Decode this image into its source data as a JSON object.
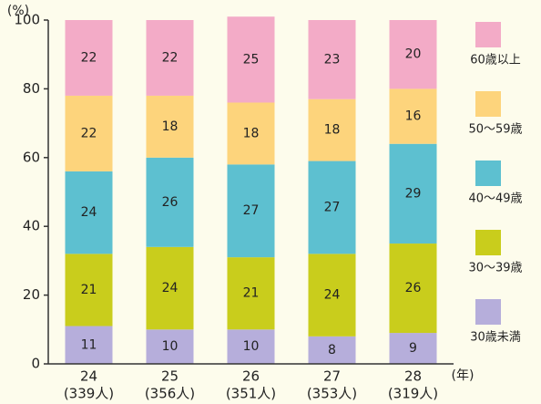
{
  "chart_data": {
    "type": "stacked_bar",
    "y_unit": "(%)",
    "x_unit": "(年)",
    "categories": [
      "24",
      "25",
      "26",
      "27",
      "28"
    ],
    "category_counts": [
      "(339人)",
      "(356人)",
      "(351人)",
      "(353人)",
      "(319人)"
    ],
    "series": [
      {
        "name": "30歳未満",
        "color": "#b6aedb",
        "values": [
          11,
          10,
          10,
          8,
          9
        ]
      },
      {
        "name": "30～39歳",
        "color": "#c9cd1c",
        "values": [
          21,
          24,
          21,
          24,
          26
        ]
      },
      {
        "name": "40～49歳",
        "color": "#5dc0d0",
        "values": [
          24,
          26,
          27,
          27,
          29
        ]
      },
      {
        "name": "50～59歳",
        "color": "#fdd47c",
        "values": [
          22,
          18,
          18,
          18,
          16
        ]
      },
      {
        "name": "60歳以上",
        "color": "#f3abc7",
        "values": [
          22,
          22,
          25,
          23,
          20
        ]
      }
    ],
    "ylim": [
      0,
      100
    ],
    "yticks": [
      0,
      20,
      40,
      60,
      80,
      100
    ],
    "legend": "right"
  }
}
